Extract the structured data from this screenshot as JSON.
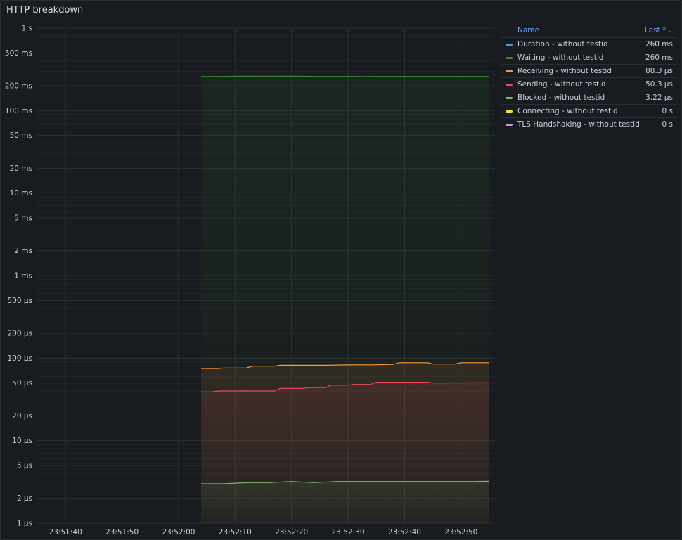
{
  "panel": {
    "title": "HTTP breakdown"
  },
  "legend": {
    "col_name": "Name",
    "col_last": "Last *",
    "sort_icon": "chevron-down-icon",
    "rows": [
      {
        "name": "Duration - without testid",
        "last": "260 ms",
        "color": "#5794f2"
      },
      {
        "name": "Waiting - without testid",
        "last": "260 ms",
        "color": "#37872d"
      },
      {
        "name": "Receiving - without testid",
        "last": "88.3 µs",
        "color": "#ff9830"
      },
      {
        "name": "Sending - without testid",
        "last": "50.3 µs",
        "color": "#f2495c"
      },
      {
        "name": "Blocked - without testid",
        "last": "3.22 µs",
        "color": "#73bf69"
      },
      {
        "name": "Connecting - without testid",
        "last": "0 s",
        "color": "#fade2a"
      },
      {
        "name": "TLS Handshaking - without testid",
        "last": "0 s",
        "color": "#ca95e5"
      }
    ]
  },
  "chart_data": {
    "type": "line",
    "title": "HTTP breakdown",
    "y_scale": "log",
    "y_unit": "seconds",
    "ylim": [
      1e-06,
      1
    ],
    "y_ticks": [
      {
        "v": 1,
        "label": "1 s"
      },
      {
        "v": 0.5,
        "label": "500 ms"
      },
      {
        "v": 0.2,
        "label": "200 ms"
      },
      {
        "v": 0.1,
        "label": "100 ms"
      },
      {
        "v": 0.05,
        "label": "50 ms"
      },
      {
        "v": 0.02,
        "label": "20 ms"
      },
      {
        "v": 0.01,
        "label": "10 ms"
      },
      {
        "v": 0.005,
        "label": "5 ms"
      },
      {
        "v": 0.002,
        "label": "2 ms"
      },
      {
        "v": 0.001,
        "label": "1 ms"
      },
      {
        "v": 0.0005,
        "label": "500 µs"
      },
      {
        "v": 0.0002,
        "label": "200 µs"
      },
      {
        "v": 0.0001,
        "label": "100 µs"
      },
      {
        "v": 5e-05,
        "label": "50 µs"
      },
      {
        "v": 2e-05,
        "label": "20 µs"
      },
      {
        "v": 1e-05,
        "label": "10 µs"
      },
      {
        "v": 5e-06,
        "label": "5 µs"
      },
      {
        "v": 2e-06,
        "label": "2 µs"
      },
      {
        "v": 1e-06,
        "label": "1 µs"
      }
    ],
    "xlim": [
      "23:51:35",
      "23:52:56"
    ],
    "x_ticks": [
      "23:51:40",
      "23:51:50",
      "23:52:00",
      "23:52:10",
      "23:52:20",
      "23:52:30",
      "23:52:40",
      "23:52:50"
    ],
    "grid": true,
    "legend_position": "right",
    "series": [
      {
        "name": "Waiting - without testid",
        "color": "#37872d",
        "x": [
          "23:52:04",
          "23:52:08",
          "23:52:12",
          "23:52:16",
          "23:52:20",
          "23:52:24",
          "23:52:28",
          "23:52:32",
          "23:52:36",
          "23:52:40",
          "23:52:44",
          "23:52:48",
          "23:52:52",
          "23:52:55"
        ],
        "y": [
          0.259,
          0.26,
          0.261,
          0.262,
          0.261,
          0.26,
          0.26,
          0.259,
          0.26,
          0.26,
          0.26,
          0.26,
          0.26,
          0.26
        ]
      },
      {
        "name": "Receiving - without testid",
        "color": "#ff9830",
        "x": [
          "23:52:04",
          "23:52:07",
          "23:52:08",
          "23:52:12",
          "23:52:13",
          "23:52:17",
          "23:52:18",
          "23:52:22",
          "23:52:26",
          "23:52:30",
          "23:52:34",
          "23:52:38",
          "23:52:39",
          "23:52:44",
          "23:52:45",
          "23:52:49",
          "23:52:50",
          "23:52:55"
        ],
        "y": [
          7.5e-05,
          7.5e-05,
          7.6e-05,
          7.6e-05,
          8e-05,
          8e-05,
          8.2e-05,
          8.2e-05,
          8.2e-05,
          8.3e-05,
          8.3e-05,
          8.4e-05,
          8.8e-05,
          8.8e-05,
          8.5e-05,
          8.5e-05,
          8.8e-05,
          8.8e-05
        ]
      },
      {
        "name": "Sending - without testid",
        "color": "#f2495c",
        "x": [
          "23:52:04",
          "23:52:06",
          "23:52:07",
          "23:52:12",
          "23:52:17",
          "23:52:18",
          "23:52:22",
          "23:52:23",
          "23:52:26",
          "23:52:27",
          "23:52:30",
          "23:52:31",
          "23:52:34",
          "23:52:35",
          "23:52:44",
          "23:52:45",
          "23:52:55"
        ],
        "y": [
          3.9e-05,
          3.9e-05,
          4e-05,
          4e-05,
          4e-05,
          4.3e-05,
          4.3e-05,
          4.4e-05,
          4.4e-05,
          4.7e-05,
          4.7e-05,
          4.8e-05,
          4.8e-05,
          5.1e-05,
          5.1e-05,
          5e-05,
          5.03e-05
        ]
      },
      {
        "name": "Blocked - without testid",
        "color": "#73bf69",
        "x": [
          "23:52:04",
          "23:52:08",
          "23:52:12",
          "23:52:16",
          "23:52:20",
          "23:52:24",
          "23:52:28",
          "23:52:32",
          "23:52:36",
          "23:52:40",
          "23:52:44",
          "23:52:48",
          "23:52:52",
          "23:52:55"
        ],
        "y": [
          3e-06,
          3e-06,
          3.1e-06,
          3.1e-06,
          3.2e-06,
          3.1e-06,
          3.2e-06,
          3.2e-06,
          3.2e-06,
          3.2e-06,
          3.2e-06,
          3.2e-06,
          3.2e-06,
          3.22e-06
        ]
      }
    ]
  }
}
